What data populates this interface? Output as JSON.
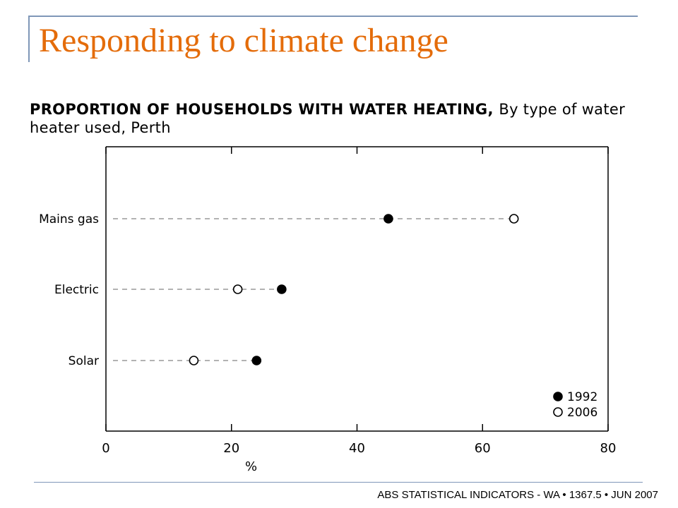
{
  "slide": {
    "title": "Responding to climate change",
    "footer": "ABS STATISTICAL INDICATORS - WA • 1367.5 • JUN 2007"
  },
  "colors": {
    "title": "#e46c0a",
    "frame": "#7f97b8",
    "ink": "#000000",
    "dash": "#999999"
  },
  "chart_data": {
    "type": "scatter",
    "title": "PROPORTION OF HOUSEHOLDS WITH WATER HEATING,",
    "subtitle": "By type of water heater used, Perth",
    "xlabel": "%",
    "ylabel": "",
    "xlim": [
      0,
      80
    ],
    "xticks": [
      0,
      20,
      40,
      60,
      80
    ],
    "categories": [
      "Mains gas",
      "Electric",
      "Solar"
    ],
    "series": [
      {
        "name": "1992",
        "marker": "filled",
        "values": [
          45,
          28,
          24
        ]
      },
      {
        "name": "2006",
        "marker": "open",
        "values": [
          65,
          21,
          14
        ]
      }
    ],
    "grid": false,
    "legend": "bottom-right"
  }
}
